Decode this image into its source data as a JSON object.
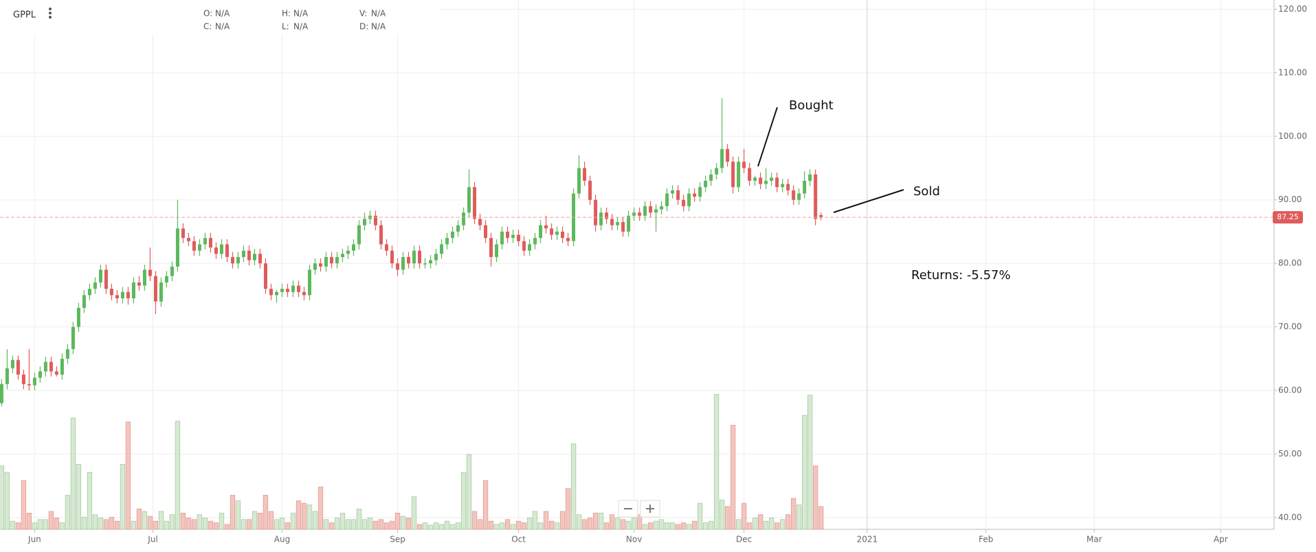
{
  "chart_data": {
    "type": "candlestick",
    "title": "GPPL",
    "header": [
      {
        "key": "O:",
        "value": "N/A"
      },
      {
        "key": "H:",
        "value": "N/A"
      },
      {
        "key": "V:",
        "value": "N/A"
      },
      {
        "key": "C:",
        "value": "N/A"
      },
      {
        "key": "L:",
        "value": "N/A"
      },
      {
        "key": "D:",
        "value": "N/A"
      }
    ],
    "annotations": [
      "Bought",
      "Sold",
      "Returns: -5.57%"
    ],
    "last_price": 87.25,
    "up_color": "#5cb85c",
    "down_color": "#e05b5b",
    "grid": true,
    "xlim": [
      -0.3,
      231.4
    ],
    "xticks": [
      {
        "value": 6,
        "label": "Jun"
      },
      {
        "value": 27.5,
        "label": "Jul"
      },
      {
        "value": 51,
        "label": "Aug"
      },
      {
        "value": 72,
        "label": "Sep"
      },
      {
        "value": 94,
        "label": "Oct"
      },
      {
        "value": 115,
        "label": "Nov"
      },
      {
        "value": 135,
        "label": "Dec"
      },
      {
        "value": 157.4,
        "label": "2021"
      },
      {
        "value": 179,
        "label": "Feb"
      },
      {
        "value": 198.7,
        "label": "Mar"
      },
      {
        "value": 221.7,
        "label": "Apr"
      }
    ],
    "ylim": [
      38.15,
      121.45
    ],
    "yticks": [
      {
        "value": 40,
        "label": "40.00"
      },
      {
        "value": 50,
        "label": "50.00"
      },
      {
        "value": 60,
        "label": "60.00"
      },
      {
        "value": 70,
        "label": "70.00"
      },
      {
        "value": 80,
        "label": "80.00"
      },
      {
        "value": 90,
        "label": "90.00"
      },
      {
        "value": 100,
        "label": "100.00"
      },
      {
        "value": 110,
        "label": "110.00"
      },
      {
        "value": 120,
        "label": "120.00"
      }
    ],
    "open": [
      58,
      61,
      63.5,
      64.8,
      62.5,
      61,
      60.8,
      62,
      63,
      64.5,
      63,
      62.5,
      65,
      66.5,
      70,
      73,
      75,
      76,
      77,
      79,
      76,
      75,
      74.5,
      75.5,
      74.5,
      77,
      76.5,
      79,
      78,
      74,
      77,
      78,
      79.5,
      85.5,
      84,
      83.5,
      82,
      83,
      84,
      82.5,
      81.5,
      83,
      81,
      80,
      81,
      82,
      80.5,
      81.5,
      80,
      76,
      75,
      75.5,
      76,
      75.5,
      76.5,
      75.5,
      75,
      79,
      80,
      79.5,
      81,
      80,
      81,
      81.5,
      82,
      83,
      86,
      87,
      87.5,
      86,
      83,
      82,
      80,
      79,
      81,
      80,
      82,
      80,
      80,
      80.5,
      81.5,
      83,
      84,
      85,
      86,
      88,
      92,
      87,
      86,
      84,
      81,
      83,
      85,
      84,
      84.5,
      83.5,
      82,
      83,
      84,
      86,
      85.5,
      84.5,
      85,
      84,
      83.5,
      91,
      95,
      93,
      90,
      86,
      88,
      87,
      86,
      86.5,
      85,
      87.5,
      88,
      87.5,
      89,
      88,
      88.5,
      89,
      91,
      91.5,
      90,
      89,
      91,
      90.5,
      92,
      93,
      94,
      95,
      98,
      96,
      92,
      96,
      95,
      93,
      93.5,
      92.5,
      93,
      93.5,
      92,
      92.5,
      91.5,
      90,
      91,
      93,
      94,
      87.6
    ],
    "high": [
      61.8,
      66.5,
      65.5,
      65.5,
      63.3,
      66.5,
      62.8,
      63.8,
      65.3,
      65.3,
      63.8,
      65.8,
      67.3,
      70.8,
      73.8,
      75.8,
      76.8,
      77.8,
      79.8,
      79.8,
      76.8,
      75.8,
      76.3,
      76.3,
      77.8,
      78,
      79.8,
      82.5,
      78.8,
      77.8,
      78.8,
      80.3,
      90,
      86.3,
      84.8,
      84.3,
      83.8,
      84.8,
      84.8,
      83.3,
      83.8,
      83.8,
      81.8,
      81.8,
      82.8,
      82.8,
      82.3,
      82.3,
      80.8,
      76.8,
      75.8,
      76.8,
      76.8,
      77.3,
      77.3,
      76.3,
      79.8,
      80.8,
      80.8,
      81.8,
      81.8,
      81.8,
      82.3,
      82.8,
      83.8,
      86.8,
      88,
      88.3,
      88.3,
      86.8,
      83.8,
      82.8,
      80.8,
      81.8,
      81.8,
      82.8,
      82.8,
      80.8,
      81.3,
      82.3,
      83.8,
      84.8,
      85.8,
      86.8,
      88.8,
      94.8,
      92.8,
      87.8,
      86.8,
      84.8,
      83.8,
      85.8,
      85.8,
      85.3,
      85.3,
      84.3,
      83.8,
      84.8,
      86.8,
      87.5,
      86.3,
      85.8,
      85.8,
      84.8,
      91.8,
      97,
      96,
      93.8,
      90.8,
      88.8,
      88.8,
      87.8,
      87.3,
      87.3,
      88.3,
      88.8,
      88.8,
      89.8,
      89.8,
      89.3,
      89.8,
      91.8,
      92.3,
      92.3,
      90.8,
      91.8,
      91.8,
      92.8,
      93.8,
      94.8,
      95.8,
      106,
      98.8,
      96.8,
      96.8,
      98,
      95.8,
      93.8,
      94.3,
      95,
      94.3,
      94.3,
      93.3,
      93.3,
      92.3,
      91.8,
      94.5,
      94.8,
      94.8,
      88
    ],
    "low": [
      57.5,
      60.2,
      62.7,
      61.7,
      60.2,
      60,
      60,
      61.2,
      62.2,
      62.2,
      62.2,
      61.7,
      64.2,
      65.7,
      69.2,
      72.2,
      74.2,
      75.2,
      76.2,
      75.2,
      74.2,
      73.7,
      73.7,
      73.5,
      73.7,
      75.7,
      75.7,
      77.2,
      72,
      73.2,
      76.2,
      77.2,
      78.7,
      83.2,
      82.7,
      81.2,
      81.2,
      82.2,
      81.7,
      80.7,
      80.7,
      80.2,
      79.2,
      79.2,
      80.2,
      79.7,
      79.7,
      79.2,
      75.2,
      74.2,
      73.8,
      74.7,
      74.7,
      74.7,
      74.7,
      74.2,
      74.2,
      78.2,
      78.7,
      78.7,
      79.2,
      79.2,
      80.2,
      80.7,
      81.2,
      82.2,
      85.2,
      86.2,
      85.2,
      82.2,
      81.2,
      79.2,
      78,
      78.2,
      79.2,
      79.2,
      79.2,
      79.2,
      79.2,
      79.7,
      80.7,
      82.2,
      83.2,
      84.2,
      85.2,
      87.2,
      86.2,
      85.2,
      83.2,
      79.5,
      80.2,
      82.2,
      83.2,
      83.2,
      82.7,
      81.2,
      81.2,
      82.2,
      83.2,
      84.7,
      83.7,
      83.7,
      83.2,
      82.7,
      82.7,
      90.2,
      92.2,
      89.2,
      85,
      85.2,
      86.2,
      85.2,
      85.2,
      84.2,
      84.2,
      86.7,
      86.7,
      86.7,
      87.2,
      85,
      87.7,
      88.2,
      90.2,
      89.2,
      88.2,
      88.2,
      89.7,
      89.7,
      91.2,
      92.2,
      93.2,
      94.2,
      95.2,
      91,
      91.2,
      94.2,
      92.2,
      92.2,
      91.7,
      91.7,
      92.2,
      91.2,
      91.2,
      90.7,
      89.2,
      89.2,
      90.2,
      92.2,
      86,
      86.8
    ],
    "close": [
      61,
      63.5,
      64.8,
      62.5,
      61,
      60.8,
      62,
      63,
      64.5,
      63,
      62.5,
      65,
      66.5,
      70,
      73,
      75,
      76,
      77,
      79,
      76,
      75,
      74.5,
      75.5,
      74.5,
      77,
      76.5,
      79,
      78,
      74,
      77,
      78,
      79.5,
      85.5,
      84,
      83.5,
      82,
      83,
      84,
      82.5,
      81.5,
      83,
      81,
      80,
      81,
      82,
      80.5,
      81.5,
      80,
      76,
      75,
      75.5,
      76,
      75.5,
      76.5,
      75.5,
      75,
      79,
      80,
      79.5,
      81,
      80,
      81,
      81.5,
      82,
      83,
      86,
      87,
      87.5,
      86,
      83,
      82,
      80,
      79,
      81,
      80,
      82,
      80,
      80,
      80.5,
      81.5,
      83,
      84,
      85,
      86,
      88,
      92,
      87,
      86,
      84,
      81,
      83,
      85,
      84,
      84.5,
      83.5,
      82,
      83,
      84,
      86,
      85.5,
      84.5,
      85,
      84,
      83.5,
      91,
      95,
      93,
      90,
      86,
      88,
      87,
      86,
      86.5,
      85,
      87.5,
      88,
      87.5,
      89,
      88,
      88.5,
      89,
      91,
      91.5,
      90,
      89,
      91,
      90.5,
      92,
      93,
      94,
      95,
      98,
      96,
      92,
      96,
      95,
      93,
      93.5,
      92.5,
      93,
      93.5,
      92,
      92.5,
      91.5,
      90,
      91,
      93,
      94,
      87,
      87.25
    ],
    "volume": [
      78,
      70,
      10,
      8,
      60,
      20,
      8,
      12,
      12,
      22,
      14,
      8,
      42,
      137,
      80,
      15,
      70,
      18,
      14,
      12,
      15,
      10,
      80,
      132,
      10,
      25,
      22,
      16,
      10,
      22,
      10,
      18,
      133,
      20,
      14,
      12,
      18,
      14,
      10,
      8,
      20,
      6,
      42,
      35,
      12,
      12,
      22,
      20,
      42,
      22,
      12,
      14,
      8,
      20,
      35,
      32,
      30,
      22,
      52,
      12,
      8,
      14,
      20,
      12,
      12,
      25,
      12,
      14,
      10,
      12,
      8,
      10,
      20,
      16,
      14,
      40,
      6,
      8,
      5,
      8,
      6,
      10,
      6,
      8,
      70,
      92,
      22,
      12,
      60,
      10,
      6,
      8,
      12,
      6,
      10,
      8,
      14,
      22,
      8,
      22,
      10,
      8,
      22,
      50,
      105,
      18,
      12,
      14,
      20,
      20,
      8,
      18,
      14,
      12,
      10,
      14,
      18,
      6,
      8,
      10,
      12,
      8,
      8,
      6,
      8,
      6,
      10,
      32,
      8,
      10,
      166,
      36,
      28,
      128,
      12,
      32,
      8,
      14,
      18,
      10,
      14,
      8,
      12,
      18,
      38,
      30,
      140,
      165,
      78,
      28
    ]
  }
}
